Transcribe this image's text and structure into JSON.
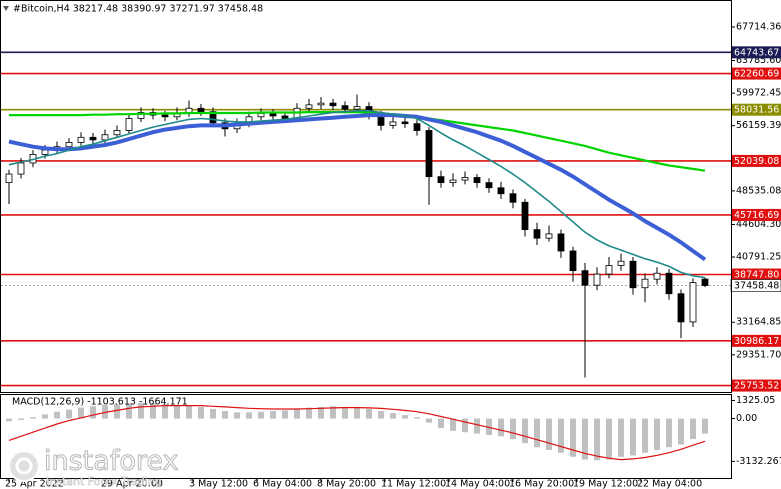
{
  "chart_data": [
    {
      "type": "candlestick",
      "title": "#Bitcoin,H4  38217.48 38390.97 37271.97 37458.48",
      "x": [
        0,
        3,
        6,
        9,
        12,
        15,
        18,
        21,
        24,
        27,
        30,
        33,
        36,
        39,
        42,
        45,
        48,
        51,
        54,
        57,
        60,
        63,
        66,
        69,
        72,
        75,
        78,
        81,
        84,
        87,
        90,
        93,
        96,
        99,
        102,
        105,
        108,
        111,
        114,
        117,
        120,
        123,
        126,
        129,
        132,
        135,
        138,
        141,
        144,
        147,
        150,
        153,
        156,
        159,
        162,
        165,
        168,
        171,
        174
      ],
      "open": [
        49500,
        50500,
        51800,
        52800,
        53300,
        53700,
        54200,
        54800,
        54500,
        55100,
        55600,
        57000,
        57700,
        57400,
        57200,
        57600,
        58200,
        57800,
        56500,
        55800,
        56400,
        57200,
        57600,
        57300,
        57000,
        58200,
        58600,
        58800,
        58500,
        58100,
        58400,
        57400,
        56200,
        56600,
        56400,
        55600,
        50200,
        49500,
        49800,
        50100,
        49500,
        48900,
        48200,
        47200,
        44000,
        43000,
        43500,
        41500,
        39200,
        37500,
        38800,
        39800,
        40300,
        37200,
        38200,
        38900,
        36500,
        33200,
        38217.48
      ],
      "high": [
        51000,
        52400,
        53300,
        53900,
        54300,
        54700,
        55400,
        55300,
        55700,
        56200,
        57600,
        58300,
        58200,
        57900,
        58300,
        59100,
        58700,
        58300,
        57000,
        57000,
        57800,
        58200,
        58100,
        57800,
        58800,
        59300,
        59500,
        59300,
        59000,
        59800,
        58900,
        57900,
        57200,
        57400,
        56900,
        56000,
        50900,
        50600,
        50800,
        50500,
        50000,
        49600,
        48700,
        47600,
        44800,
        44500,
        44000,
        42000,
        40100,
        39600,
        40800,
        41200,
        40800,
        38900,
        39600,
        39400,
        37000,
        38300,
        38390.97
      ],
      "low": [
        47000,
        50000,
        51300,
        52300,
        52900,
        53200,
        53800,
        53900,
        54000,
        54700,
        55200,
        56600,
        56900,
        56700,
        56800,
        57200,
        57300,
        56000,
        54900,
        55300,
        56000,
        56800,
        56800,
        56500,
        56700,
        57800,
        58100,
        58000,
        57600,
        57700,
        56900,
        55600,
        55800,
        55900,
        55000,
        46900,
        48900,
        49000,
        49300,
        48900,
        48300,
        47600,
        46500,
        43200,
        42200,
        42600,
        40700,
        37900,
        26700,
        36900,
        38300,
        39200,
        36400,
        35500,
        37600,
        35800,
        31300,
        32600,
        37271.97
      ],
      "close": [
        50500,
        51800,
        52800,
        53300,
        53700,
        54200,
        54800,
        54500,
        55100,
        55600,
        57000,
        57700,
        57400,
        57200,
        57600,
        58200,
        57800,
        56500,
        55800,
        56400,
        57200,
        57600,
        57300,
        57000,
        58200,
        58600,
        58800,
        58500,
        58100,
        58400,
        57400,
        56200,
        56600,
        56400,
        55600,
        50200,
        49500,
        49800,
        50100,
        49500,
        48900,
        48200,
        47200,
        44000,
        43000,
        43500,
        41500,
        39200,
        37500,
        38800,
        39800,
        40300,
        37200,
        38200,
        38900,
        36500,
        33200,
        37800,
        37458.48
      ],
      "series": [
        {
          "color": "#00d400",
          "width": 2.2,
          "values": [
            57400,
            57400,
            57400,
            57400,
            57400,
            57400,
            57400,
            57450,
            57450,
            57500,
            57500,
            57550,
            57550,
            57600,
            57600,
            57650,
            57650,
            57650,
            57650,
            57650,
            57650,
            57700,
            57700,
            57700,
            57700,
            57750,
            57750,
            57750,
            57750,
            57750,
            57700,
            57600,
            57500,
            57400,
            57200,
            57000,
            56800,
            56600,
            56400,
            56200,
            56000,
            55800,
            55600,
            55300,
            55000,
            54700,
            54400,
            54100,
            53800,
            53400,
            53000,
            52700,
            52400,
            52100,
            51800,
            51500,
            51300,
            51100,
            50900
          ]
        },
        {
          "color": "#3d5fd6",
          "width": 4,
          "values": [
            54300,
            54000,
            53700,
            53500,
            53400,
            53400,
            53500,
            53700,
            53900,
            54200,
            54600,
            55000,
            55400,
            55700,
            55900,
            56100,
            56200,
            56200,
            56200,
            56300,
            56400,
            56500,
            56600,
            56700,
            56800,
            56900,
            57000,
            57100,
            57200,
            57300,
            57400,
            57400,
            57400,
            57300,
            57200,
            56900,
            56600,
            56200,
            55800,
            55400,
            54900,
            54400,
            53800,
            53100,
            52400,
            51700,
            51000,
            50200,
            49300,
            48400,
            47500,
            46700,
            45900,
            45000,
            44200,
            43400,
            42500,
            41500,
            40500
          ]
        },
        {
          "color": "#1f8a8a",
          "width": 1.6,
          "values": [
            51600,
            51900,
            52200,
            52600,
            52900,
            53300,
            53700,
            54000,
            54400,
            54800,
            55200,
            55600,
            56000,
            56300,
            56600,
            56900,
            57000,
            56900,
            56700,
            56600,
            56600,
            56700,
            56800,
            56900,
            57100,
            57300,
            57500,
            57700,
            57800,
            57900,
            57900,
            57700,
            57500,
            57300,
            57000,
            56200,
            55300,
            54500,
            53800,
            53000,
            52200,
            51400,
            50500,
            49500,
            48400,
            47300,
            46100,
            44900,
            43700,
            42800,
            42100,
            41600,
            41100,
            40600,
            40200,
            39700,
            39000,
            38600,
            38400
          ]
        }
      ],
      "levels": [
        {
          "value": 64743.67,
          "color": "#1b1b55"
        },
        {
          "value": 62260.69,
          "color": "#e01010"
        },
        {
          "value": 58031.56,
          "color": "#8c8c00"
        },
        {
          "value": 52039.08,
          "color": "#e01010"
        },
        {
          "value": 45716.69,
          "color": "#e01010"
        },
        {
          "value": 38747.8,
          "label": "38747.80",
          "color": "#e01010"
        },
        {
          "value": 30986.17,
          "color": "#e01010"
        },
        {
          "value": 25753.52,
          "color": "#e01010"
        }
      ],
      "last_price": 37458.48,
      "xlim": [
        -1,
        175.25
      ],
      "ylim": [
        25000,
        70400
      ],
      "yticks": [
        67714.36,
        {
          "value": 63785.6,
          "label": "63785.60"
        },
        59972.45,
        56159.39,
        48535.08,
        {
          "value": 44604.3,
          "label": "44604.30"
        },
        40791.25,
        33164.85,
        {
          "value": 29351.7,
          "label": "29351.70"
        }
      ],
      "xticks": [
        {
          "value": 0,
          "label": "25 Apr 2022"
        },
        {
          "value": 24,
          "label": "29 Apr 20:00"
        },
        {
          "value": 46,
          "label": "3 May 12:00"
        },
        {
          "value": 62,
          "label": "6 May 04:00"
        },
        {
          "value": 78,
          "label": "8 May 20:00"
        },
        {
          "value": 94,
          "label": "11 May 12:00"
        },
        {
          "value": 110,
          "label": "14 May 04:00"
        },
        {
          "value": 126,
          "label": "16 May 20:00"
        },
        {
          "value": 142,
          "label": "19 May 12:00"
        },
        {
          "value": 158,
          "label": "22 May 04:00"
        }
      ]
    },
    {
      "type": "macd",
      "title": "MACD(12,26,9) -1103.613 -1664.171",
      "x": [
        0,
        3,
        6,
        9,
        12,
        15,
        18,
        21,
        24,
        27,
        30,
        33,
        36,
        39,
        42,
        45,
        48,
        51,
        54,
        57,
        60,
        63,
        66,
        69,
        72,
        75,
        78,
        81,
        84,
        87,
        90,
        93,
        96,
        99,
        102,
        105,
        108,
        111,
        114,
        117,
        120,
        123,
        126,
        129,
        132,
        135,
        138,
        141,
        144,
        147,
        150,
        153,
        156,
        159,
        162,
        165,
        168,
        171,
        174
      ],
      "series": [
        {
          "type": "bar",
          "color": "#c0c0c0",
          "values": [
            -200,
            -100,
            100,
            300,
            500,
            650,
            800,
            900,
            1000,
            1050,
            1100,
            1150,
            1100,
            1050,
            1000,
            950,
            850,
            700,
            550,
            450,
            450,
            500,
            550,
            600,
            700,
            800,
            850,
            900,
            850,
            800,
            700,
            550,
            400,
            250,
            100,
            -300,
            -700,
            -900,
            -1000,
            -1100,
            -1200,
            -1300,
            -1500,
            -1800,
            -2100,
            -2300,
            -2500,
            -2800,
            -3000,
            -3050,
            -3000,
            -2800,
            -2700,
            -2500,
            -2300,
            -2100,
            -1900,
            -1500,
            -1103.613
          ]
        },
        {
          "type": "line",
          "color": "#e01010",
          "values": [
            -1600,
            -1300,
            -1000,
            -700,
            -400,
            -150,
            50,
            250,
            450,
            600,
            750,
            850,
            900,
            950,
            950,
            950,
            950,
            900,
            850,
            800,
            750,
            720,
            700,
            700,
            700,
            720,
            750,
            780,
            800,
            800,
            780,
            740,
            680,
            600,
            500,
            350,
            150,
            -50,
            -250,
            -450,
            -650,
            -850,
            -1050,
            -1300,
            -1550,
            -1800,
            -2050,
            -2300,
            -2550,
            -2750,
            -2900,
            -3000,
            -2950,
            -2850,
            -2700,
            -2500,
            -2250,
            -1950,
            -1664.171
          ]
        }
      ],
      "xlim": [
        -1,
        175.25
      ],
      "ylim": [
        -4350,
        1650
      ],
      "yticks": [
        1325.05,
        {
          "value": 0,
          "label": "0.00"
        },
        -3132.267
      ]
    }
  ],
  "watermark": {
    "brand": "instaforex",
    "tagline": "Instant Forex Trading"
  }
}
